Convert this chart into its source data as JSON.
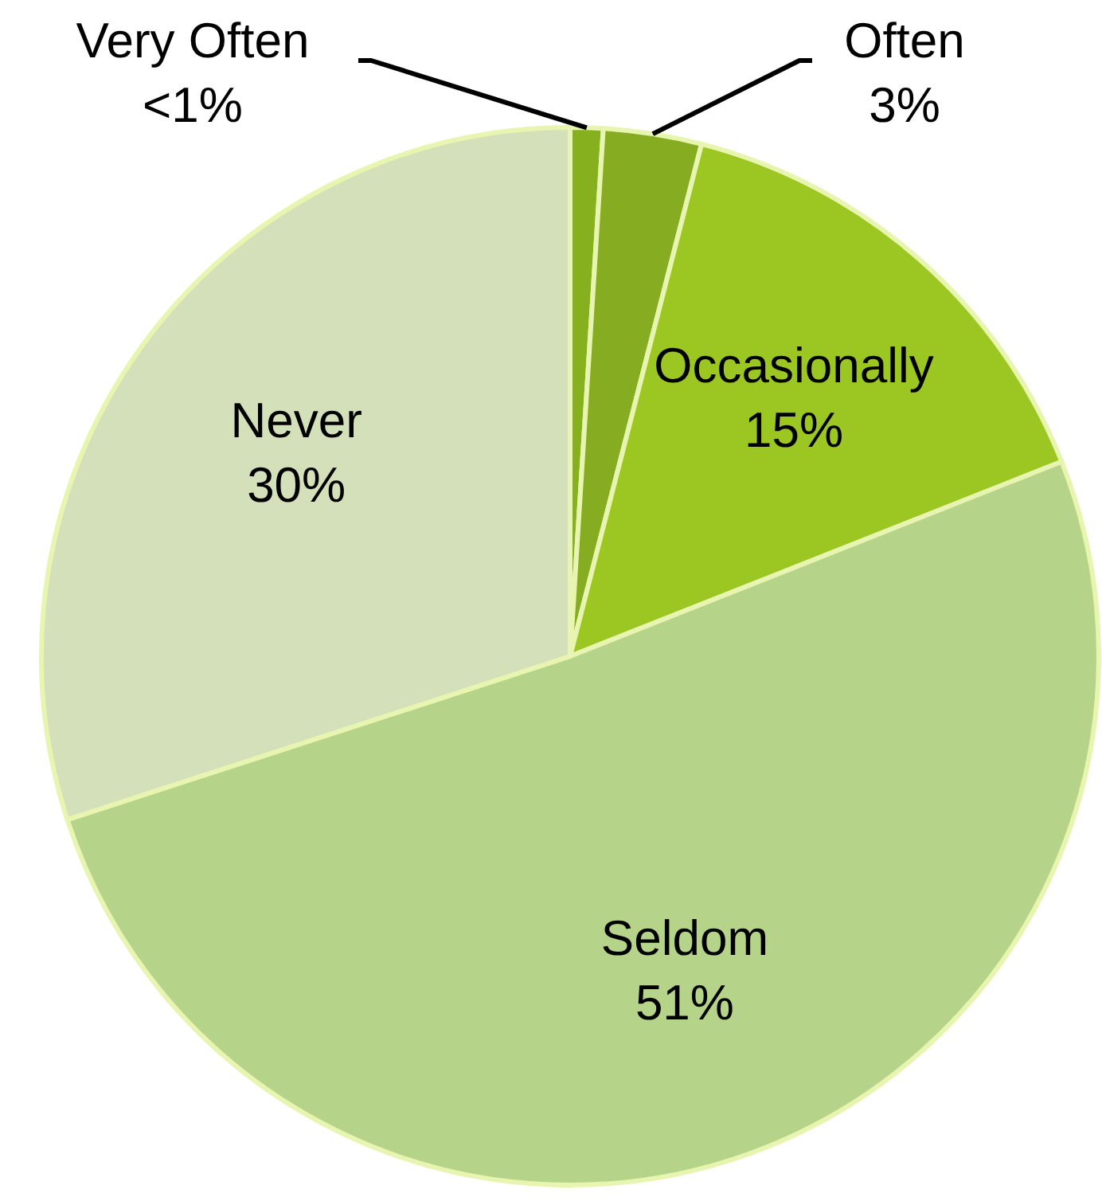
{
  "chart_data": {
    "type": "pie",
    "categories": [
      "Very Often",
      "Often",
      "Occasionally",
      "Seldom",
      "Never"
    ],
    "values": [
      1,
      3,
      15,
      51,
      30
    ],
    "value_labels": [
      "<1%",
      "3%",
      "15%",
      "51%",
      "30%"
    ],
    "colors": [
      "#86b01e",
      "#86ad22",
      "#9cc622",
      "#b5d48a",
      "#d3e0b9"
    ]
  }
}
